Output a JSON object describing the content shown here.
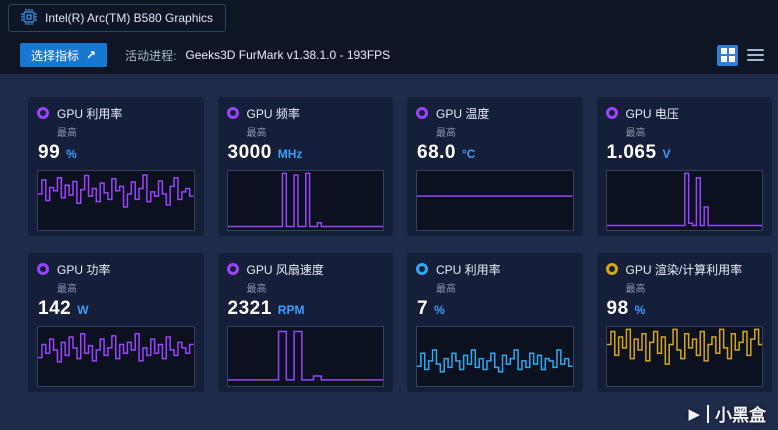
{
  "header": {
    "device_name": "Intel(R) Arc(TM) B580 Graphics",
    "select_metrics_label": "选择指标",
    "active_process_label": "活动进程:",
    "active_process_value": "Geeks3D FurMark v1.38.1.0 - 193FPS"
  },
  "icons": {
    "external_arrow": "↗"
  },
  "colors": {
    "accent_blue": "#1778d2",
    "unit_blue": "#3b9eff",
    "purple": "#9a45fb",
    "cyan": "#2fa9f0",
    "yellow": "#d7a51d"
  },
  "cards": [
    {
      "title": "GPU 利用率",
      "sub": "最高",
      "value": "99",
      "unit": "%",
      "color": "#9a45fb",
      "values": [
        62,
        88,
        50,
        74,
        68,
        92,
        55,
        78,
        60,
        85,
        45,
        70,
        96,
        58,
        72,
        48,
        82,
        64,
        52,
        90,
        68,
        76,
        38,
        62,
        84,
        52,
        72,
        97,
        48,
        66,
        58,
        86,
        62,
        42,
        76,
        92,
        52,
        66,
        72,
        58
      ]
    },
    {
      "title": "GPU 频率",
      "sub": "最高",
      "value": "3000",
      "unit": "MHz",
      "color": "#9a45fb",
      "values": [
        2,
        2,
        2,
        2,
        2,
        2,
        2,
        2,
        2,
        2,
        2,
        2,
        2,
        2,
        100,
        2,
        2,
        97,
        2,
        2,
        100,
        2,
        2,
        9,
        2,
        2,
        2,
        2,
        2,
        2,
        2,
        2,
        2,
        2,
        2,
        2,
        2,
        2,
        2,
        2
      ]
    },
    {
      "title": "GPU 温度",
      "sub": "最高",
      "value": "68.0",
      "unit": "°C",
      "color": "#9a45fb",
      "values": [
        58,
        58,
        58,
        58,
        58,
        58,
        58,
        58,
        58,
        58,
        58,
        58,
        58,
        58,
        58,
        58,
        58,
        58,
        58,
        58,
        58,
        58,
        58,
        58,
        58,
        58,
        58,
        58,
        58,
        58,
        58,
        58,
        58,
        58,
        58,
        58,
        58,
        58,
        58,
        58
      ]
    },
    {
      "title": "GPU 电压",
      "sub": "最高",
      "value": "1.065",
      "unit": "V",
      "color": "#9a45fb",
      "values": [
        4,
        4,
        4,
        4,
        4,
        4,
        4,
        4,
        4,
        4,
        4,
        4,
        4,
        4,
        4,
        4,
        4,
        4,
        4,
        4,
        100,
        8,
        4,
        92,
        4,
        38,
        4,
        4,
        4,
        4,
        4,
        4,
        4,
        4,
        4,
        4,
        4,
        4,
        4,
        4
      ]
    },
    {
      "title": "GPU 功率",
      "sub": "最高",
      "value": "142",
      "unit": "W",
      "color": "#9a45fb",
      "values": [
        48,
        72,
        56,
        82,
        62,
        40,
        76,
        52,
        86,
        66,
        46,
        92,
        56,
        70,
        42,
        62,
        82,
        52,
        66,
        88,
        46,
        72,
        56,
        76,
        62,
        92,
        42,
        66,
        52,
        82,
        56,
        72,
        46,
        86,
        62,
        52,
        76,
        66,
        56,
        72
      ]
    },
    {
      "title": "GPU 风扇速度",
      "sub": "最高",
      "value": "2321",
      "unit": "RPM",
      "color": "#9a45fb",
      "values": [
        7,
        7,
        7,
        7,
        7,
        7,
        7,
        7,
        7,
        7,
        7,
        7,
        7,
        96,
        96,
        7,
        7,
        96,
        96,
        7,
        7,
        7,
        14,
        14,
        7,
        7,
        7,
        7,
        7,
        7,
        7,
        7,
        7,
        7,
        7,
        7,
        7,
        7,
        7,
        7
      ]
    },
    {
      "title": "CPU 利用率",
      "sub": "最高",
      "value": "7",
      "unit": "%",
      "color": "#2fa9f0",
      "values": [
        32,
        56,
        26,
        42,
        62,
        36,
        22,
        46,
        30,
        56,
        42,
        26,
        52,
        36,
        62,
        30,
        46,
        26,
        42,
        56,
        30,
        22,
        52,
        36,
        46,
        62,
        26,
        42,
        30,
        56,
        36,
        52,
        26,
        46,
        42,
        30,
        62,
        36,
        46,
        32
      ]
    },
    {
      "title": "GPU 渲染/计算利用率",
      "sub": "最高",
      "value": "98",
      "unit": "%",
      "color": "#d7a51d",
      "values": [
        72,
        96,
        52,
        86,
        66,
        100,
        46,
        82,
        62,
        92,
        42,
        76,
        96,
        56,
        86,
        36,
        72,
        100,
        62,
        46,
        92,
        66,
        82,
        52,
        96,
        42,
        72,
        86,
        56,
        100,
        66,
        46,
        92,
        62,
        76,
        96,
        52,
        82,
        100,
        72
      ]
    }
  ],
  "watermark": {
    "glyph": "▶",
    "text": "小黑盒"
  }
}
